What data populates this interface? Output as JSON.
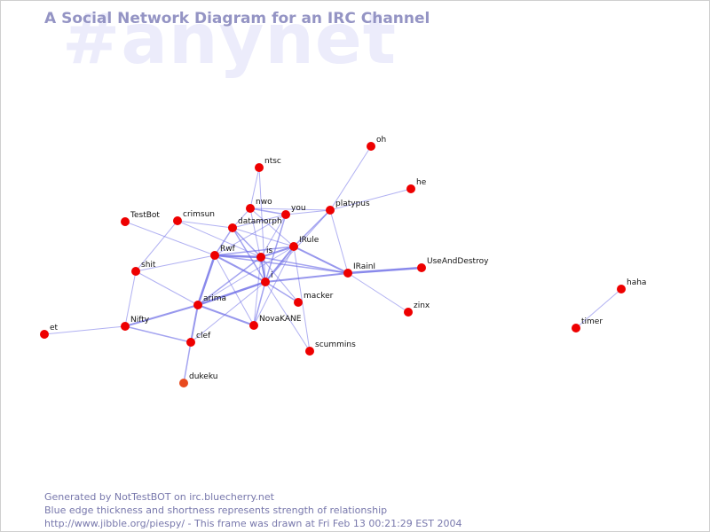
{
  "watermark": "#anynet",
  "title": "A Social Network Diagram for an IRC Channel",
  "footer": {
    "line1": "Generated by NotTestBOT on irc.bluecherry.net",
    "line2": "Blue edge thickness and shortness represents strength of relationship",
    "line3": "http://www.jibble.org/piespy/ - This frame was drawn at Fri Feb 13 00:21:29 EST 2004"
  },
  "colors": {
    "node": "#ee0000",
    "node_alt": "#e84a1e",
    "edge": "#6c6ce6",
    "title": "#9494c4",
    "footer": "#7878ac"
  },
  "nodes": [
    {
      "id": "oh",
      "label": "oh"
    },
    {
      "id": "ntsc",
      "label": "ntsc"
    },
    {
      "id": "he",
      "label": "he"
    },
    {
      "id": "nwo",
      "label": "nwo"
    },
    {
      "id": "you",
      "label": "you"
    },
    {
      "id": "platypus",
      "label": "platypus"
    },
    {
      "id": "TestBot",
      "label": "TestBot"
    },
    {
      "id": "crimsun",
      "label": "crimsun"
    },
    {
      "id": "datamorph",
      "label": "datamorph"
    },
    {
      "id": "IRule",
      "label": "IRule"
    },
    {
      "id": "Rwf",
      "label": "Rwf"
    },
    {
      "id": "is",
      "label": "is"
    },
    {
      "id": "IRainI",
      "label": "IRainI"
    },
    {
      "id": "UseAndDestroy",
      "label": "UseAndDestroy"
    },
    {
      "id": "shit",
      "label": "shit"
    },
    {
      "id": "i",
      "label": "i"
    },
    {
      "id": "macker",
      "label": "macker"
    },
    {
      "id": "arima",
      "label": "arima"
    },
    {
      "id": "zinx",
      "label": "zinx"
    },
    {
      "id": "NovaKANE",
      "label": "NovaKANE"
    },
    {
      "id": "Nifty",
      "label": "Nifty"
    },
    {
      "id": "et",
      "label": "et"
    },
    {
      "id": "clef",
      "label": "clef"
    },
    {
      "id": "scummins",
      "label": "scummins"
    },
    {
      "id": "dukeku",
      "label": "dukeku",
      "alt": true
    },
    {
      "id": "haha",
      "label": "haha"
    },
    {
      "id": "timer",
      "label": "timer"
    }
  ],
  "edges": [
    [
      "oh",
      "platypus",
      1
    ],
    [
      "he",
      "platypus",
      1
    ],
    [
      "ntsc",
      "nwo",
      1
    ],
    [
      "ntsc",
      "i",
      1
    ],
    [
      "nwo",
      "you",
      1.5
    ],
    [
      "nwo",
      "datamorph",
      1
    ],
    [
      "nwo",
      "platypus",
      1
    ],
    [
      "nwo",
      "IRule",
      1
    ],
    [
      "nwo",
      "i",
      1
    ],
    [
      "you",
      "platypus",
      1
    ],
    [
      "you",
      "datamorph",
      1
    ],
    [
      "you",
      "is",
      1
    ],
    [
      "you",
      "Rwf",
      1
    ],
    [
      "you",
      "i",
      1.5
    ],
    [
      "platypus",
      "IRule",
      1.5
    ],
    [
      "platypus",
      "IRainI",
      1
    ],
    [
      "platypus",
      "i",
      1
    ],
    [
      "TestBot",
      "Rwf",
      1
    ],
    [
      "crimsun",
      "datamorph",
      1
    ],
    [
      "crimsun",
      "shit",
      1
    ],
    [
      "crimsun",
      "is",
      1
    ],
    [
      "datamorph",
      "IRule",
      1
    ],
    [
      "datamorph",
      "Rwf",
      1.5
    ],
    [
      "datamorph",
      "is",
      1.5
    ],
    [
      "datamorph",
      "i",
      1.5
    ],
    [
      "IRule",
      "is",
      2
    ],
    [
      "IRule",
      "Rwf",
      1.5
    ],
    [
      "IRule",
      "i",
      2
    ],
    [
      "IRule",
      "IRainI",
      2
    ],
    [
      "IRule",
      "arima",
      1
    ],
    [
      "IRule",
      "scummins",
      1
    ],
    [
      "IRule",
      "NovaKANE",
      1
    ],
    [
      "Rwf",
      "is",
      2.5
    ],
    [
      "Rwf",
      "i",
      2
    ],
    [
      "Rwf",
      "arima",
      2.5
    ],
    [
      "Rwf",
      "shit",
      1
    ],
    [
      "Rwf",
      "IRainI",
      1.5
    ],
    [
      "Rwf",
      "NovaKANE",
      1
    ],
    [
      "is",
      "i",
      2
    ],
    [
      "is",
      "IRainI",
      1.5
    ],
    [
      "is",
      "macker",
      1
    ],
    [
      "is",
      "arima",
      1.5
    ],
    [
      "is",
      "NovaKANE",
      1
    ],
    [
      "i",
      "IRainI",
      2
    ],
    [
      "i",
      "arima",
      2.5
    ],
    [
      "i",
      "macker",
      1.5
    ],
    [
      "i",
      "NovaKANE",
      1.5
    ],
    [
      "i",
      "scummins",
      1
    ],
    [
      "i",
      "clef",
      1
    ],
    [
      "IRainI",
      "UseAndDestroy",
      2.5
    ],
    [
      "IRainI",
      "zinx",
      1
    ],
    [
      "shit",
      "arima",
      1
    ],
    [
      "shit",
      "Nifty",
      1
    ],
    [
      "arima",
      "Nifty",
      2
    ],
    [
      "arima",
      "NovaKANE",
      2
    ],
    [
      "arima",
      "clef",
      2
    ],
    [
      "Nifty",
      "et",
      1
    ],
    [
      "Nifty",
      "clef",
      1.5
    ],
    [
      "clef",
      "dukeku",
      1.5
    ],
    [
      "haha",
      "timer",
      1
    ]
  ]
}
